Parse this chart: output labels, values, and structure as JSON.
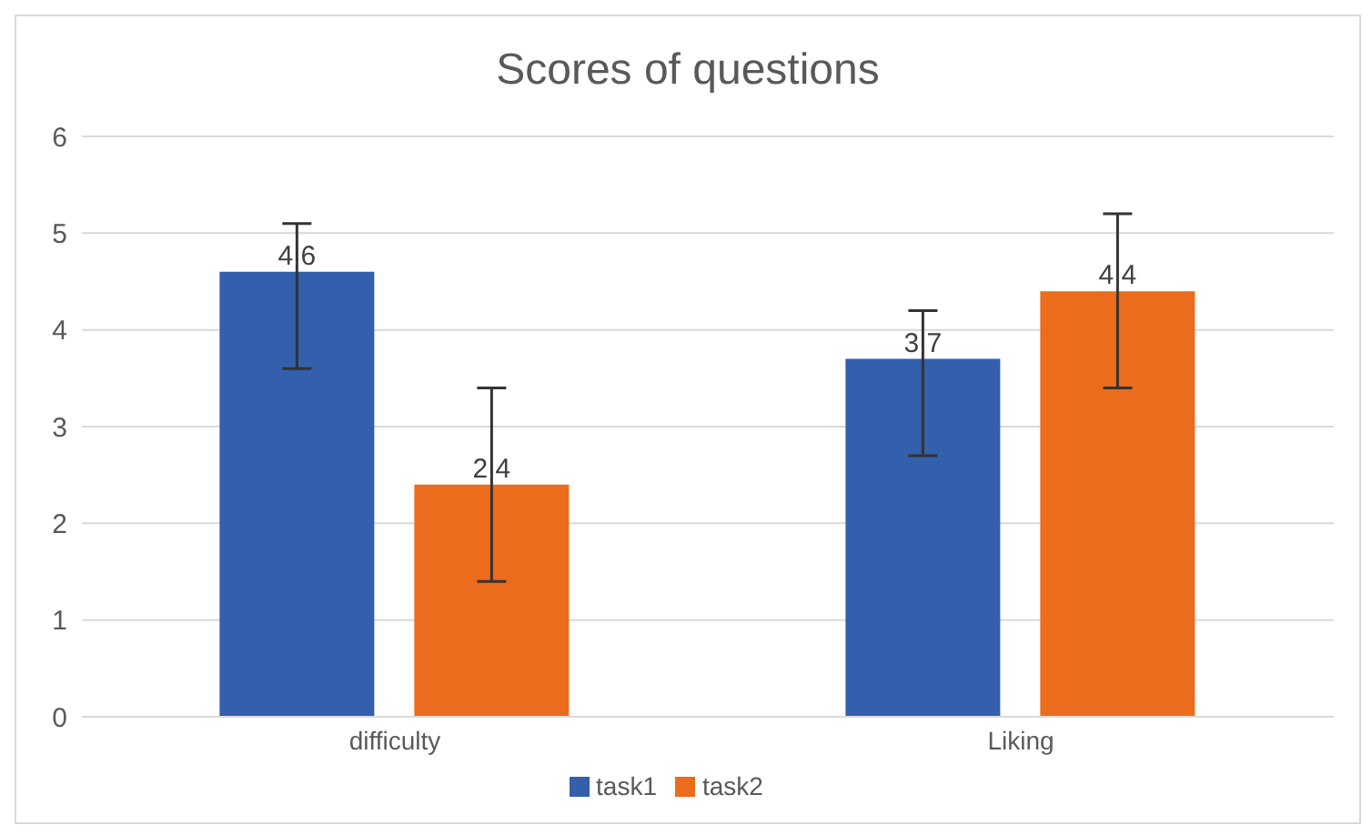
{
  "chart_data": {
    "type": "bar",
    "title": "Scores of questions",
    "categories": [
      "difficulty",
      "Liking"
    ],
    "series": [
      {
        "name": "task1",
        "color": "#335fac",
        "values": [
          4.6,
          3.7
        ],
        "errors": [
          [
            3.6,
            5.1
          ],
          [
            2.7,
            4.2
          ]
        ]
      },
      {
        "name": "task2",
        "color": "#eb6c1c",
        "values": [
          2.4,
          4.4
        ],
        "errors": [
          [
            1.4,
            3.4
          ],
          [
            3.4,
            5.2
          ]
        ]
      }
    ],
    "ylim": [
      0,
      6
    ],
    "yticks": [
      0,
      1,
      2,
      3,
      4,
      5,
      6
    ],
    "grid": "y",
    "legend": "bottom",
    "data_labels": true
  }
}
